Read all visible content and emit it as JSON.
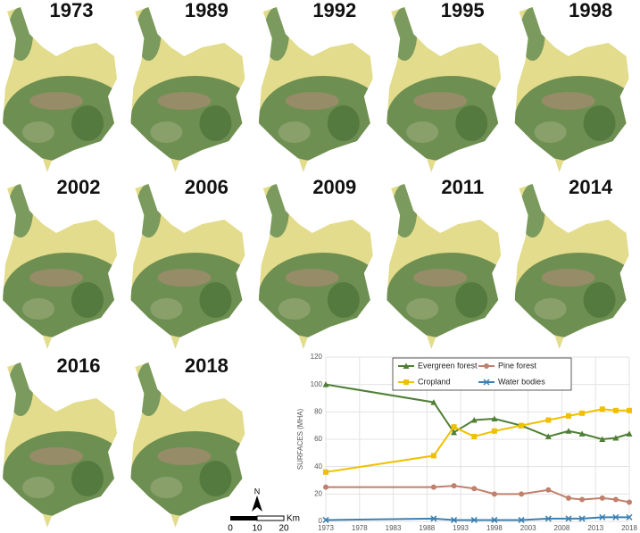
{
  "panels": {
    "years": [
      "1973",
      "1989",
      "1992",
      "1995",
      "1998",
      "2002",
      "2006",
      "2009",
      "2011",
      "2014",
      "2016",
      "2018"
    ]
  },
  "scale_bar": {
    "north": "N",
    "unit": "Km",
    "ticks": [
      0,
      10,
      20
    ]
  },
  "chart_data": {
    "type": "line",
    "y_label": "SURFACES (MHA)",
    "x": [
      1973,
      1989,
      1992,
      1995,
      1998,
      2002,
      2006,
      2009,
      2011,
      2014,
      2016,
      2018
    ],
    "xlim": [
      1973,
      2018
    ],
    "xticks": [
      1973,
      1978,
      1983,
      1988,
      1993,
      1998,
      2003,
      2008,
      2013,
      2018
    ],
    "ylim": [
      0,
      120
    ],
    "yticks": [
      0,
      20,
      40,
      60,
      80,
      100,
      120
    ],
    "grid": true,
    "series": [
      {
        "name": "Evergreen forest",
        "color": "#4f7f35",
        "marker": "triangle",
        "values": [
          100,
          87,
          65,
          74,
          75,
          70,
          62,
          66,
          64,
          60,
          61,
          64
        ]
      },
      {
        "name": "Pine forest",
        "color": "#c0806c",
        "marker": "circle",
        "values": [
          25,
          25,
          26,
          24,
          20,
          20,
          23,
          17,
          16,
          17,
          16,
          14
        ]
      },
      {
        "name": "Cropland",
        "color": "#f0c000",
        "marker": "square",
        "values": [
          36,
          48,
          69,
          62,
          66,
          70,
          74,
          77,
          79,
          82,
          81,
          81
        ]
      },
      {
        "name": "Water bodies",
        "color": "#3b80b2",
        "marker": "x",
        "values": [
          1,
          2,
          1,
          1,
          1,
          1,
          2,
          2,
          2,
          3,
          3,
          3
        ]
      }
    ]
  }
}
